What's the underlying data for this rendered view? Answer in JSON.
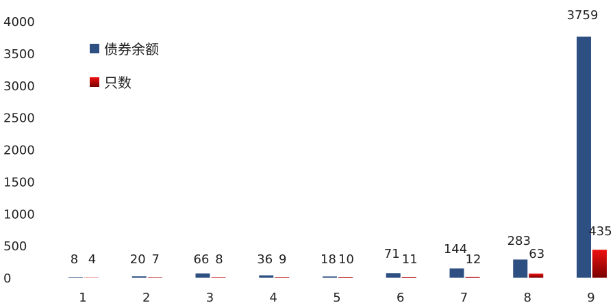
{
  "chart_data": {
    "type": "bar",
    "categories": [
      "1",
      "2",
      "3",
      "4",
      "5",
      "6",
      "7",
      "8",
      "9"
    ],
    "series": [
      {
        "name": "债券余额",
        "values": [
          8,
          20,
          66,
          36,
          18,
          71,
          144,
          283,
          3759
        ]
      },
      {
        "name": "只数",
        "values": [
          4,
          7,
          8,
          9,
          10,
          11,
          12,
          63,
          435
        ]
      }
    ],
    "y_ticks": [
      0,
      500,
      1000,
      1500,
      2000,
      2500,
      3000,
      3500,
      4000
    ],
    "ylim": [
      0,
      4000
    ],
    "grid": false,
    "legend_position": "top-left",
    "colors": {
      "balance": "#2e4f82",
      "count_top": "#ee1111",
      "count_bottom": "#7a0000"
    }
  }
}
